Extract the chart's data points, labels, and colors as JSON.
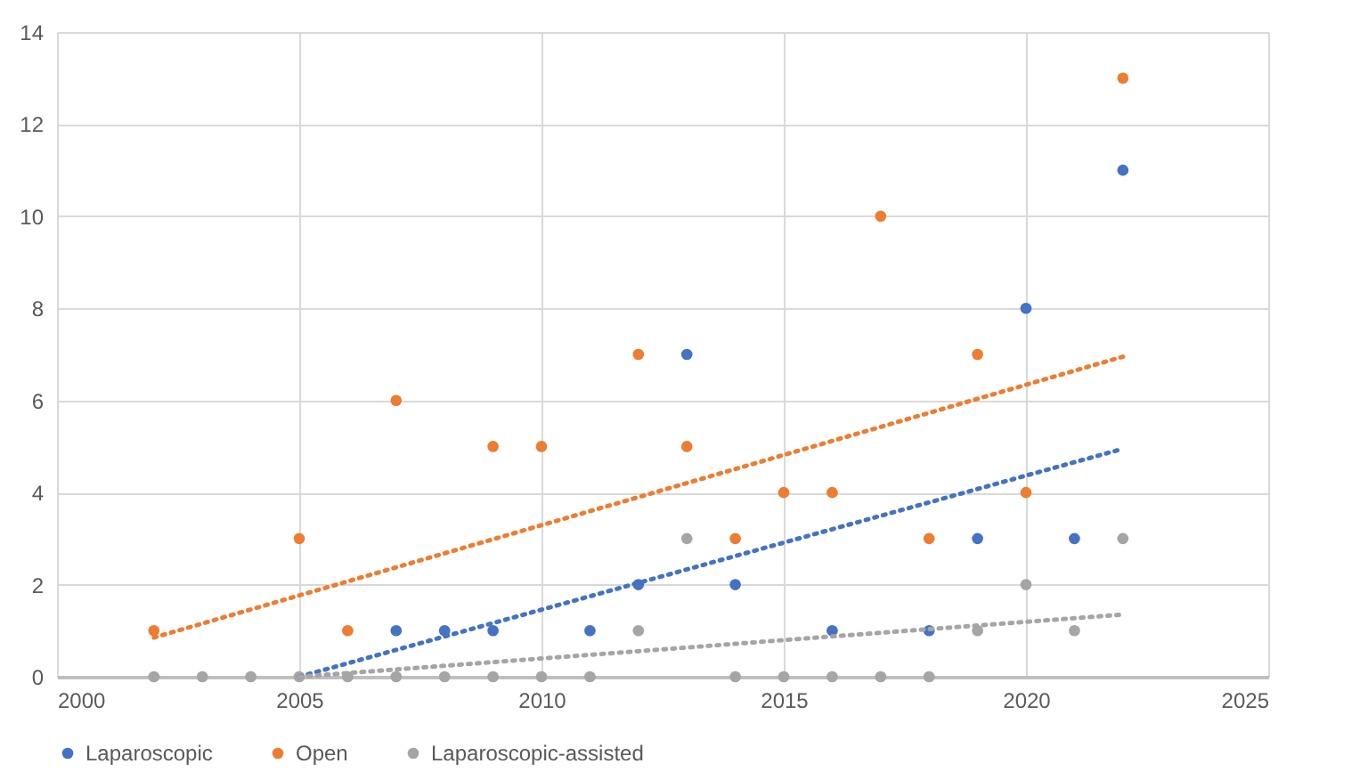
{
  "chart_data": {
    "type": "scatter",
    "xlim": [
      2000,
      2025
    ],
    "xticks": [
      2000,
      2005,
      2010,
      2015,
      2020,
      2025
    ],
    "ylim": [
      0,
      14
    ],
    "yticks": [
      0,
      2,
      4,
      6,
      8,
      10,
      12,
      14
    ],
    "grid": true,
    "legend": "bottom",
    "marker": "circle",
    "series": [
      {
        "name": "Laparoscopic",
        "color": "#4472c4",
        "x": [
          2007,
          2008,
          2009,
          2011,
          2012,
          2013,
          2014,
          2016,
          2018,
          2019,
          2020,
          2021,
          2022
        ],
        "values": [
          1,
          1,
          1,
          1,
          2,
          7,
          2,
          1,
          1,
          3,
          8,
          3,
          11
        ]
      },
      {
        "name": "Open",
        "color": "#ed7d31",
        "x": [
          2002,
          2005,
          2006,
          2007,
          2009,
          2010,
          2012,
          2013,
          2014,
          2015,
          2016,
          2017,
          2018,
          2019,
          2020,
          2022
        ],
        "values": [
          1,
          3,
          1,
          6,
          5,
          5,
          7,
          5,
          3,
          4,
          4,
          10,
          3,
          7,
          4,
          13
        ]
      },
      {
        "name": "Laparoscopic-assisted",
        "color": "#a5a5a5",
        "x": [
          2002,
          2003,
          2004,
          2005,
          2006,
          2007,
          2008,
          2009,
          2010,
          2011,
          2012,
          2013,
          2014,
          2015,
          2016,
          2017,
          2018,
          2019,
          2020,
          2021,
          2022
        ],
        "values": [
          0,
          0,
          0,
          0,
          0,
          0,
          0,
          0,
          0,
          0,
          1,
          3,
          0,
          0,
          0,
          0,
          0,
          1,
          2,
          1,
          3
        ]
      },
      {
        "type": "line",
        "marker": "none",
        "color": "#4472c4",
        "line_style": "dotted",
        "x": [
          2005,
          2022
        ],
        "values": [
          0,
          4.95
        ]
      },
      {
        "type": "line",
        "marker": "none",
        "color": "#ed7d31",
        "line_style": "dotted",
        "x": [
          2002,
          2022
        ],
        "values": [
          0.85,
          6.95
        ]
      },
      {
        "type": "line",
        "marker": "none",
        "color": "#a5a5a5",
        "line_style": "dotted",
        "x": [
          2005,
          2022
        ],
        "values": [
          0,
          1.35
        ]
      }
    ]
  }
}
